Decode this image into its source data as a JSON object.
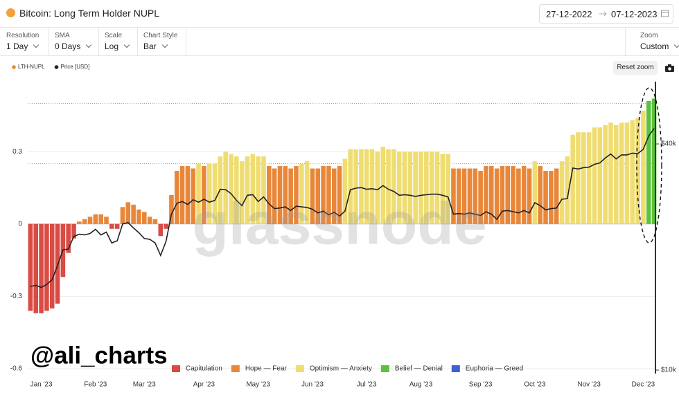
{
  "header": {
    "title": "Bitcoin: Long Term Holder NUPL",
    "date_from": "27-12-2022",
    "date_to": "07-12-2023"
  },
  "controls": [
    {
      "label": "Resolution",
      "value": "1 Day"
    },
    {
      "label": "SMA",
      "value": "0 Days"
    },
    {
      "label": "Scale",
      "value": "Log"
    },
    {
      "label": "Chart Style",
      "value": "Bar"
    }
  ],
  "zoom": {
    "label": "Zoom",
    "value": "Custom"
  },
  "reset_zoom": "Reset zoom",
  "watermark": "glassnode",
  "chart_data": {
    "type": "bar",
    "annotation": "@ali_charts",
    "categories": [
      null,
      null,
      "Jan '23",
      null,
      null,
      null,
      null,
      null,
      null,
      null,
      null,
      null,
      "Feb '23",
      null,
      null,
      null,
      null,
      null,
      null,
      null,
      null,
      "Mar '23",
      null,
      null,
      null,
      null,
      null,
      null,
      null,
      null,
      null,
      null,
      "Apr '23",
      null,
      null,
      null,
      null,
      null,
      null,
      null,
      null,
      null,
      "May '23",
      null,
      null,
      null,
      null,
      null,
      null,
      null,
      null,
      null,
      "Jun '23",
      null,
      null,
      null,
      null,
      null,
      null,
      null,
      null,
      null,
      "Jul '23",
      null,
      null,
      null,
      null,
      null,
      null,
      null,
      null,
      null,
      "Aug '23",
      null,
      null,
      null,
      null,
      null,
      null,
      null,
      null,
      null,
      null,
      "Sep '23",
      null,
      null,
      null,
      null,
      null,
      null,
      null,
      null,
      null,
      "Oct '23",
      null,
      null,
      null,
      null,
      null,
      null,
      null,
      null,
      null,
      "Nov '23",
      null,
      null,
      null,
      null,
      null,
      null,
      null,
      null,
      null,
      "Dec '23",
      null,
      null
    ],
    "series": [
      {
        "name": "LTH-NUPL",
        "color": "#e8892f",
        "values": [
          -0.36,
          -0.37,
          -0.37,
          -0.36,
          -0.35,
          -0.33,
          -0.22,
          -0.12,
          -0.06,
          0.01,
          0.02,
          0.03,
          0.04,
          0.04,
          0.03,
          -0.02,
          -0.02,
          0.07,
          0.09,
          0.08,
          0.06,
          0.05,
          0.03,
          0.02,
          -0.05,
          -0.02,
          0.12,
          0.22,
          0.24,
          0.24,
          0.23,
          0.25,
          0.24,
          0.25,
          0.25,
          0.28,
          0.3,
          0.29,
          0.28,
          0.26,
          0.28,
          0.29,
          0.28,
          0.28,
          0.24,
          0.23,
          0.24,
          0.24,
          0.23,
          0.24,
          0.25,
          0.26,
          0.23,
          0.23,
          0.24,
          0.24,
          0.23,
          0.24,
          0.27,
          0.31,
          0.31,
          0.31,
          0.31,
          0.31,
          0.3,
          0.32,
          0.31,
          0.31,
          0.3,
          0.3,
          0.3,
          0.3,
          0.3,
          0.3,
          0.3,
          0.3,
          0.29,
          0.29,
          0.23,
          0.23,
          0.23,
          0.23,
          0.23,
          0.22,
          0.24,
          0.24,
          0.23,
          0.24,
          0.24,
          0.24,
          0.23,
          0.24,
          0.23,
          0.26,
          0.24,
          0.22,
          0.22,
          0.23,
          0.26,
          0.28,
          0.37,
          0.38,
          0.38,
          0.38,
          0.4,
          0.4,
          0.41,
          0.42,
          0.41,
          0.42,
          0.42,
          0.43,
          0.44,
          0.47,
          0.51,
          0.52
        ]
      },
      {
        "name": "Price [USD]",
        "color": "#222222",
        "axis": "y2",
        "values": [
          16700,
          16800,
          16600,
          16900,
          17400,
          19000,
          20900,
          21000,
          22700,
          23000,
          22900,
          23100,
          23700,
          22900,
          23300,
          21800,
          22100,
          24500,
          24700,
          23900,
          23200,
          22400,
          22300,
          21800,
          20200,
          22000,
          26000,
          27800,
          28100,
          27600,
          28400,
          28000,
          28500,
          28000,
          28300,
          30300,
          30200,
          29500,
          28300,
          27400,
          29200,
          29300,
          28100,
          28900,
          27700,
          26900,
          27000,
          27200,
          26600,
          27300,
          27200,
          27100,
          26800,
          26200,
          26500,
          25900,
          26300,
          25700,
          26500,
          30200,
          30500,
          30600,
          30300,
          30400,
          30200,
          31000,
          30300,
          29900,
          29200,
          29300,
          29200,
          29000,
          29200,
          29300,
          29400,
          29400,
          29200,
          28900,
          26000,
          26100,
          26000,
          26200,
          26000,
          25800,
          26400,
          26000,
          25200,
          26500,
          26600,
          26400,
          26200,
          26600,
          26200,
          27900,
          27400,
          26700,
          26900,
          27000,
          28500,
          28600,
          34500,
          34300,
          34600,
          34700,
          35300,
          35600,
          36700,
          37600,
          36500,
          37400,
          37400,
          37800,
          37700,
          38700,
          42000,
          44000
        ]
      }
    ],
    "bands": [
      {
        "name": "Capitulation",
        "color": "#d94b43"
      },
      {
        "name": "Hope — Fear",
        "color": "#e8873a"
      },
      {
        "name": "Optimism — Anxiety",
        "color": "#efdd72"
      },
      {
        "name": "Belief — Denial",
        "color": "#5cc23e"
      },
      {
        "name": "Euphoria — Greed",
        "color": "#3f5fd6"
      }
    ],
    "band_thresholds": [
      0,
      0.25,
      0.5,
      0.75
    ],
    "ylim": [
      -0.62,
      0.59
    ],
    "yticks": [
      -0.6,
      -0.3,
      0,
      0.3
    ],
    "y2lim": [
      9790,
      58600
    ],
    "y2scale": "log",
    "y2ticks": [
      {
        "value": 10000,
        "label": "$10k"
      },
      {
        "value": 40000,
        "label": "$40k"
      }
    ],
    "grid": true
  }
}
